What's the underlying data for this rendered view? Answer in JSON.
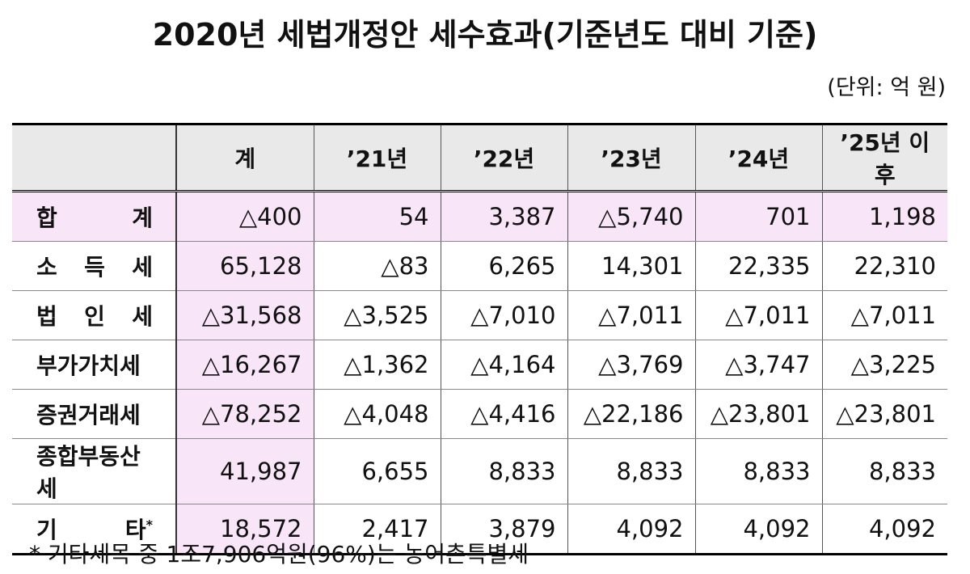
{
  "header": {
    "title": "2020년 세법개정안 세수효과(기준년도 대비 기준)",
    "unit": "(단위: 억 원)"
  },
  "table": {
    "columns": [
      "계",
      "’21년",
      "’22년",
      "’23년",
      "’24년",
      "’25년 이후"
    ],
    "rows": [
      {
        "label": "합 계",
        "values": [
          "△400",
          "54",
          "3,387",
          "△5,740",
          "701",
          "1,198"
        ]
      },
      {
        "label": "소 득 세",
        "values": [
          "65,128",
          "△83",
          "6,265",
          "14,301",
          "22,335",
          "22,310"
        ]
      },
      {
        "label": "법 인 세",
        "values": [
          "△31,568",
          "△3,525",
          "△7,010",
          "△7,011",
          "△7,011",
          "△7,011"
        ]
      },
      {
        "label": "부가가치세",
        "values": [
          "△16,267",
          "△1,362",
          "△4,164",
          "△3,769",
          "△3,747",
          "△3,225"
        ]
      },
      {
        "label": "증권거래세",
        "values": [
          "△78,252",
          "△4,048",
          "△4,416",
          "△22,186",
          "△23,801",
          "△23,801"
        ]
      },
      {
        "label": "종합부동산세",
        "values": [
          "41,987",
          "6,655",
          "8,833",
          "8,833",
          "8,833",
          "8,833"
        ]
      },
      {
        "label": "기 타",
        "note_mark": "*",
        "values": [
          "18,572",
          "2,417",
          "3,879",
          "4,092",
          "4,092",
          "4,092"
        ]
      }
    ]
  },
  "footnote": "* 기타세목 중 1조7,906억원(96%)는 농어촌특별세"
}
